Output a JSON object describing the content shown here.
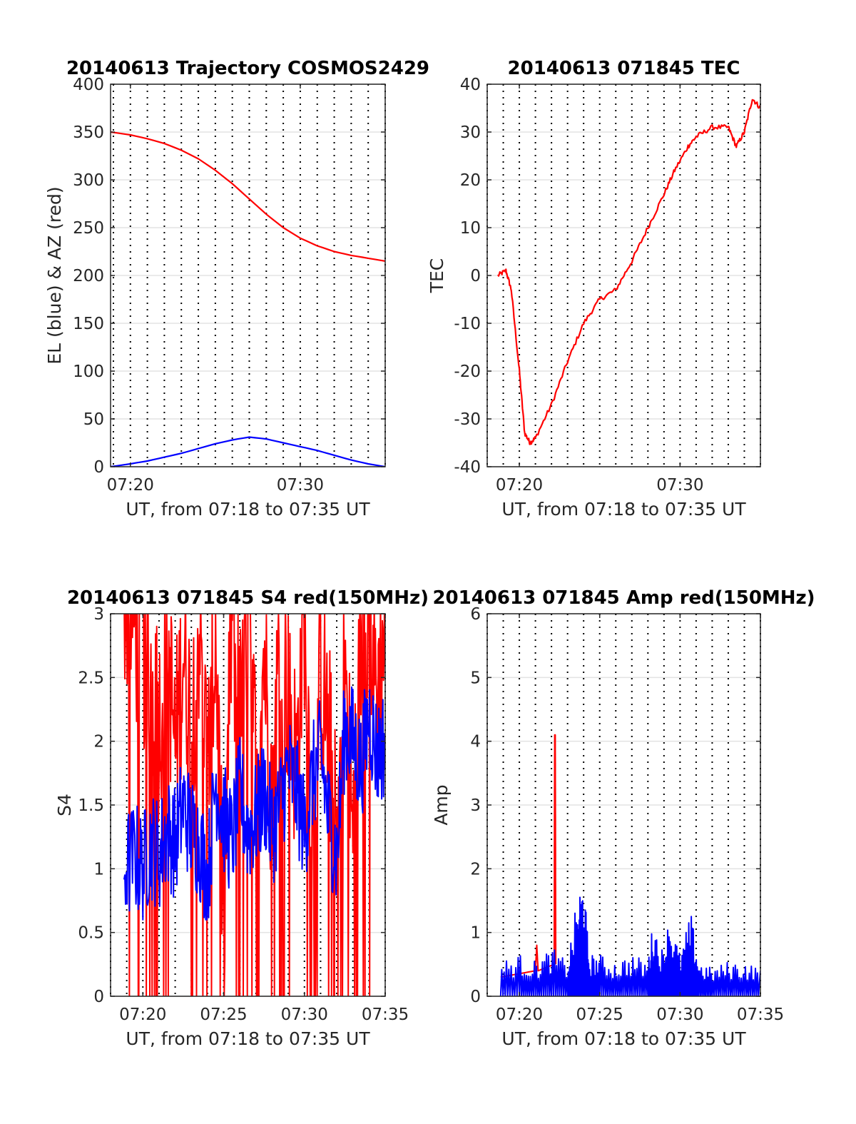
{
  "chart_data": [
    {
      "type": "line",
      "title": "20140613 Trajectory COSMOS2429",
      "xlabel": "UT, from 07:18 to 07:35 UT",
      "ylabel": "EL (blue) & AZ (red)",
      "xlim": [
        "07:18:50",
        "07:35:00"
      ],
      "ylim": [
        0,
        400
      ],
      "xticks": [
        "07:20",
        "07:30"
      ],
      "yticks": [
        "0",
        "50",
        "100",
        "150",
        "200",
        "250",
        "300",
        "350",
        "400"
      ],
      "grid": "horizontal solid at y-ticks, vertical dotted every minute",
      "series": [
        {
          "color": "#ff0000",
          "x": [
            "07:18:50",
            "07:20:00",
            "07:21:00",
            "07:22:00",
            "07:23:00",
            "07:24:00",
            "07:25:00",
            "07:26:00",
            "07:27:00",
            "07:28:00",
            "07:29:00",
            "07:30:00",
            "07:31:00",
            "07:32:00",
            "07:33:00",
            "07:34:00",
            "07:35:00"
          ],
          "values": [
            350,
            347,
            343,
            338,
            331,
            322,
            310,
            296,
            280,
            264,
            250,
            239,
            231,
            225,
            221,
            218,
            215
          ]
        },
        {
          "color": "#0000ff",
          "x": [
            "07:18:50",
            "07:20:00",
            "07:21:00",
            "07:22:00",
            "07:23:00",
            "07:24:00",
            "07:25:00",
            "07:26:00",
            "07:27:00",
            "07:28:00",
            "07:29:00",
            "07:30:00",
            "07:31:00",
            "07:32:00",
            "07:33:00",
            "07:34:00",
            "07:35:00"
          ],
          "values": [
            0,
            3,
            6,
            10,
            14,
            19,
            24,
            28,
            31,
            29,
            25,
            21,
            17,
            12,
            7,
            3,
            0
          ]
        }
      ]
    },
    {
      "type": "line",
      "title": "20140613 071845 TEC",
      "xlabel": "UT, from 07:18 to 07:35 UT",
      "ylabel": "TEC",
      "xlim": [
        "07:18:00",
        "07:35:00"
      ],
      "ylim": [
        -40,
        40
      ],
      "xticks": [
        "07:20",
        "07:30"
      ],
      "yticks": [
        "-40",
        "-30",
        "-20",
        "-10",
        "0",
        "10",
        "20",
        "30",
        "40"
      ],
      "grid": "horizontal solid at y-ticks, vertical dotted every minute",
      "series": [
        {
          "color": "#ff0000",
          "x": [
            "07:18:40",
            "07:19:10",
            "07:19:30",
            "07:20:00",
            "07:20:20",
            "07:20:40",
            "07:21:00",
            "07:22:00",
            "07:23:00",
            "07:24:00",
            "07:25:00",
            "07:26:00",
            "07:27:00",
            "07:28:00",
            "07:29:00",
            "07:29:40",
            "07:30:30",
            "07:31:00",
            "07:32:00",
            "07:33:00",
            "07:33:30",
            "07:34:00",
            "07:34:30",
            "07:35:00"
          ],
          "values": [
            0,
            1,
            -3,
            -20,
            -33,
            -35,
            -34,
            -27,
            -18,
            -10,
            -5,
            -3,
            3,
            10,
            17,
            22,
            27,
            29,
            31,
            31,
            27,
            30,
            37,
            35
          ]
        }
      ]
    },
    {
      "type": "line",
      "title": "20140613 071845 S4 red(150MHz)",
      "xlabel": "UT, from 07:18 to 07:35 UT",
      "ylabel": "S4",
      "xlim": [
        "07:18:00",
        "07:35:00"
      ],
      "ylim": [
        0,
        3
      ],
      "xticks": [
        "07:20",
        "07:25",
        "07:30",
        "07:35"
      ],
      "yticks": [
        "0",
        "0.5",
        "1",
        "1.5",
        "2",
        "2.5",
        "3"
      ],
      "grid": "horizontal solid at y-ticks, vertical dotted every minute",
      "series": [
        {
          "color": "#ff0000",
          "x": [
            "07:18:50",
            "07:19:30",
            "07:20:00",
            "07:20:30",
            "07:21:00",
            "07:21:30",
            "07:22:00",
            "07:22:30",
            "07:23:00",
            "07:23:30",
            "07:24:00",
            "07:24:30",
            "07:25:00",
            "07:25:30",
            "07:26:00",
            "07:26:30",
            "07:27:00",
            "07:27:30",
            "07:28:00",
            "07:28:30",
            "07:29:00",
            "07:29:30",
            "07:30:00",
            "07:30:30",
            "07:31:00",
            "07:31:30",
            "07:32:00",
            "07:32:30",
            "07:33:00",
            "07:33:30",
            "07:34:00",
            "07:34:30",
            "07:35:00"
          ],
          "values": [
            2.8,
            2.6,
            2.4,
            2.2,
            1.8,
            2.5,
            1.6,
            2.4,
            1.8,
            2.6,
            1.4,
            2.5,
            0.2,
            2.7,
            1.8,
            2.6,
            1.5,
            2.4,
            1.2,
            2.6,
            2.0,
            1.5,
            2.7,
            1.0,
            2.2,
            1.8,
            0.8,
            2.3,
            0.9,
            2.4,
            2.8,
            2.0,
            2.6
          ]
        },
        {
          "color": "#0000ff",
          "x": [
            "07:18:50",
            "07:19:30",
            "07:20:00",
            "07:20:30",
            "07:21:00",
            "07:21:30",
            "07:22:00",
            "07:22:30",
            "07:23:00",
            "07:23:30",
            "07:24:00",
            "07:24:30",
            "07:25:00",
            "07:25:30",
            "07:26:00",
            "07:26:30",
            "07:27:00",
            "07:27:30",
            "07:28:00",
            "07:28:30",
            "07:29:00",
            "07:29:30",
            "07:30:00",
            "07:30:30",
            "07:31:00",
            "07:31:30",
            "07:32:00",
            "07:32:30",
            "07:33:00",
            "07:33:30",
            "07:34:00",
            "07:34:30",
            "07:35:00"
          ],
          "values": [
            1.0,
            1.1,
            1.0,
            1.2,
            1.1,
            1.3,
            1.2,
            1.5,
            1.3,
            1.2,
            0.9,
            1.7,
            1.4,
            1.2,
            1.6,
            1.3,
            1.4,
            1.6,
            1.3,
            1.5,
            1.8,
            1.6,
            1.3,
            1.7,
            1.9,
            1.4,
            1.1,
            2.1,
            2.0,
            1.8,
            2.2,
            1.9,
            2.0
          ]
        }
      ]
    },
    {
      "type": "line",
      "title": "20140613 071845 Amp red(150MHz)",
      "xlabel": "UT, from 07:18 to 07:35 UT",
      "ylabel": "Amp",
      "xlim": [
        "07:18:00",
        "07:35:00"
      ],
      "ylim": [
        0,
        6
      ],
      "xticks": [
        "07:20",
        "07:25",
        "07:30",
        "07:35"
      ],
      "yticks": [
        "0",
        "1",
        "2",
        "3",
        "4",
        "5",
        "6"
      ],
      "grid": "horizontal solid at y-ticks, vertical dotted every minute",
      "series": [
        {
          "color": "#ff0000",
          "x": [
            "07:18:50",
            "07:21:00",
            "07:21:05",
            "07:21:10",
            "07:22:10",
            "07:22:12",
            "07:22:14",
            "07:22:16"
          ],
          "values": [
            0.3,
            0.4,
            0.8,
            0.4,
            0.5,
            4.1,
            4.1,
            0.5
          ]
        },
        {
          "color": "#0000ff",
          "x": [
            "07:18:50",
            "07:20:00",
            "07:21:00",
            "07:22:00",
            "07:23:00",
            "07:23:40",
            "07:24:00",
            "07:24:20",
            "07:25:00",
            "07:26:00",
            "07:27:00",
            "07:28:00",
            "07:28:20",
            "07:29:00",
            "07:29:20",
            "07:30:00",
            "07:30:40",
            "07:31:10",
            "07:32:00",
            "07:33:00",
            "07:34:00",
            "07:35:00"
          ],
          "values": [
            0.5,
            0.6,
            0.5,
            0.7,
            0.5,
            1.5,
            1.7,
            0.6,
            0.6,
            0.5,
            0.6,
            0.5,
            1.1,
            0.6,
            1.2,
            0.6,
            1.2,
            0.5,
            0.4,
            0.5,
            0.5,
            0.4
          ]
        }
      ]
    }
  ]
}
